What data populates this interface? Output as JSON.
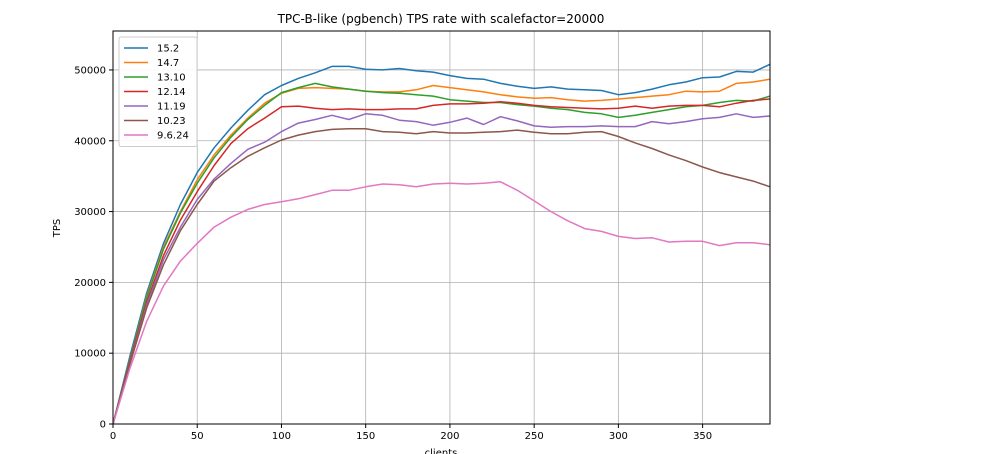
{
  "chart_data": {
    "type": "line",
    "title": "TPC-B-like (pgbench) TPS rate with scalefactor=20000",
    "xlabel": "clients",
    "ylabel": "TPS",
    "xlim": [
      0,
      390
    ],
    "ylim": [
      0,
      55500
    ],
    "xticks": [
      0,
      50,
      100,
      150,
      200,
      250,
      300,
      350
    ],
    "yticks": [
      0,
      10000,
      20000,
      30000,
      40000,
      50000
    ],
    "grid": true,
    "legend_position": "top-left",
    "x": [
      0,
      10,
      20,
      30,
      40,
      50,
      60,
      70,
      80,
      90,
      100,
      110,
      120,
      130,
      140,
      150,
      160,
      170,
      180,
      190,
      200,
      210,
      220,
      230,
      240,
      250,
      260,
      270,
      280,
      290,
      300,
      310,
      320,
      330,
      340,
      350,
      360,
      370,
      380,
      390
    ],
    "series": [
      {
        "name": "15.2",
        "color": "#1f77b4",
        "values": [
          0,
          9500,
          18500,
          25500,
          31000,
          35500,
          39000,
          41800,
          44300,
          46500,
          47800,
          48800,
          49600,
          50500,
          50500,
          50100,
          50000,
          50200,
          49900,
          49700,
          49200,
          48800,
          48700,
          48100,
          47700,
          47400,
          47600,
          47300,
          47200,
          47100,
          46500,
          46800,
          47300,
          47900,
          48300,
          48900,
          49000,
          49800,
          49700,
          50800
        ]
      },
      {
        "name": "14.7",
        "color": "#ff7f0e",
        "values": [
          0,
          9000,
          18000,
          25000,
          30000,
          34500,
          38000,
          40800,
          43200,
          45300,
          46700,
          47400,
          47500,
          47400,
          47300,
          47000,
          46900,
          46900,
          47200,
          47800,
          47500,
          47200,
          46900,
          46500,
          46200,
          46000,
          46100,
          45800,
          45600,
          45700,
          45900,
          46100,
          46300,
          46500,
          47000,
          46900,
          47000,
          48100,
          48300,
          48700
        ]
      },
      {
        "name": "13.10",
        "color": "#2ca02c",
        "values": [
          0,
          9000,
          17800,
          24700,
          29800,
          34000,
          37600,
          40500,
          43000,
          45000,
          46800,
          47500,
          48100,
          47600,
          47300,
          47000,
          46800,
          46700,
          46500,
          46300,
          45800,
          45600,
          45400,
          45400,
          45100,
          44900,
          44600,
          44400,
          44000,
          43800,
          43300,
          43600,
          44000,
          44400,
          44800,
          45000,
          45400,
          45700,
          45600,
          46300
        ]
      },
      {
        "name": "12.14",
        "color": "#d62728",
        "values": [
          0,
          8800,
          17200,
          23800,
          28800,
          32800,
          36500,
          39600,
          41700,
          43200,
          44800,
          44900,
          44600,
          44400,
          44500,
          44400,
          44400,
          44500,
          44500,
          45000,
          45200,
          45200,
          45300,
          45500,
          45300,
          45000,
          44800,
          44700,
          44600,
          44500,
          44600,
          44900,
          44600,
          44900,
          45000,
          45000,
          44800,
          45300,
          45700,
          45900
        ]
      },
      {
        "name": "11.19",
        "color": "#9467bd",
        "values": [
          0,
          8500,
          16800,
          23200,
          27800,
          31700,
          34600,
          36800,
          38800,
          39800,
          41300,
          42500,
          43000,
          43600,
          43000,
          43800,
          43600,
          42900,
          42700,
          42200,
          42600,
          43200,
          42300,
          43400,
          42800,
          42100,
          41900,
          42000,
          42000,
          42100,
          42000,
          42000,
          42700,
          42400,
          42700,
          43100,
          43300,
          43800,
          43300,
          43500
        ]
      },
      {
        "name": "10.23",
        "color": "#8c564b",
        "values": [
          0,
          8400,
          16400,
          22500,
          27300,
          31000,
          34300,
          36200,
          37800,
          39000,
          40100,
          40800,
          41300,
          41600,
          41700,
          41700,
          41300,
          41200,
          41000,
          41300,
          41100,
          41100,
          41200,
          41300,
          41500,
          41200,
          41000,
          41000,
          41200,
          41300,
          40600,
          39700,
          38900,
          38000,
          37200,
          36300,
          35500,
          34900,
          34300,
          33500
        ]
      },
      {
        "name": "9.6.24",
        "color": "#e377c2",
        "values": [
          0,
          7800,
          14500,
          19500,
          23000,
          25500,
          27800,
          29200,
          30300,
          31000,
          31400,
          31800,
          32400,
          33000,
          33000,
          33500,
          33900,
          33800,
          33500,
          33900,
          34000,
          33900,
          34000,
          34200,
          33000,
          31500,
          30000,
          28700,
          27600,
          27200,
          26500,
          26200,
          26300,
          25700,
          25800,
          25800,
          25200,
          25600,
          25600,
          25300
        ]
      }
    ]
  }
}
